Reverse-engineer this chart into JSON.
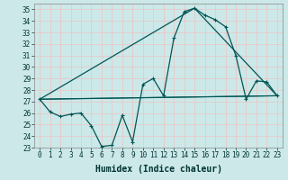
{
  "xlabel": "Humidex (Indice chaleur)",
  "bg_color": "#cce8e8",
  "grid_color": "#b0d8d8",
  "line_color": "#005555",
  "xlim": [
    -0.5,
    23.5
  ],
  "ylim": [
    23,
    35.5
  ],
  "x_ticks": [
    0,
    1,
    2,
    3,
    4,
    5,
    6,
    7,
    8,
    9,
    10,
    11,
    12,
    13,
    14,
    15,
    16,
    17,
    18,
    19,
    20,
    21,
    22,
    23
  ],
  "y_ticks": [
    23,
    24,
    25,
    26,
    27,
    28,
    29,
    30,
    31,
    32,
    33,
    34,
    35
  ],
  "series1_x": [
    0,
    1,
    2,
    3,
    4,
    5,
    6,
    7,
    8,
    9,
    10,
    11,
    12,
    13,
    14,
    15,
    16,
    17,
    18,
    19,
    20,
    21,
    22,
    23
  ],
  "series1_y": [
    27.2,
    26.1,
    25.7,
    25.9,
    26.0,
    24.9,
    23.1,
    23.2,
    25.8,
    23.5,
    28.5,
    29.0,
    27.5,
    32.5,
    34.8,
    35.1,
    34.5,
    34.1,
    33.5,
    31.0,
    27.2,
    28.8,
    28.7,
    27.5
  ],
  "series2_x": [
    0,
    23
  ],
  "series2_y": [
    27.2,
    27.5
  ],
  "series3_x": [
    0,
    23
  ],
  "series3_y": [
    27.2,
    27.5
  ],
  "series4_x": [
    0,
    15,
    23
  ],
  "series4_y": [
    27.2,
    35.1,
    27.5
  ],
  "series5_x": [
    0,
    23
  ],
  "series5_y": [
    27.2,
    27.5
  ],
  "fontsize_label": 7,
  "fontsize_tick": 5.5
}
